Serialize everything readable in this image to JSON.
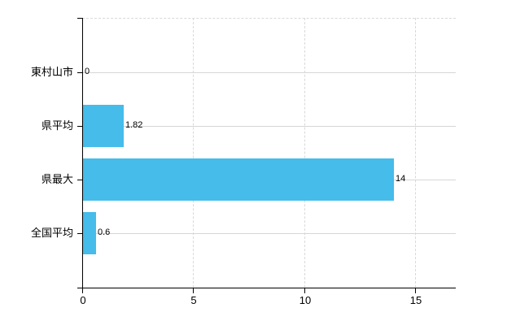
{
  "chart_data": {
    "type": "bar",
    "orientation": "horizontal",
    "title": "",
    "xlabel": "",
    "ylabel": "",
    "categories": [
      "東村山市",
      "県平均",
      "県最大",
      "全国平均"
    ],
    "values": [
      0,
      1.82,
      14,
      0.6
    ],
    "value_labels": [
      "0",
      "1.82",
      "14",
      "0.6"
    ],
    "x_ticks": [
      0,
      5,
      10,
      15
    ],
    "x_tick_labels": [
      "0",
      "5",
      "10",
      "15"
    ],
    "xlim": [
      0,
      16.8
    ],
    "grid": true,
    "legend": false,
    "colors": {
      "bar": "#45BCEA",
      "grid": "#D6D6D6",
      "axis": "#000000",
      "text": "#000000",
      "background": "#FFFFFF"
    }
  }
}
